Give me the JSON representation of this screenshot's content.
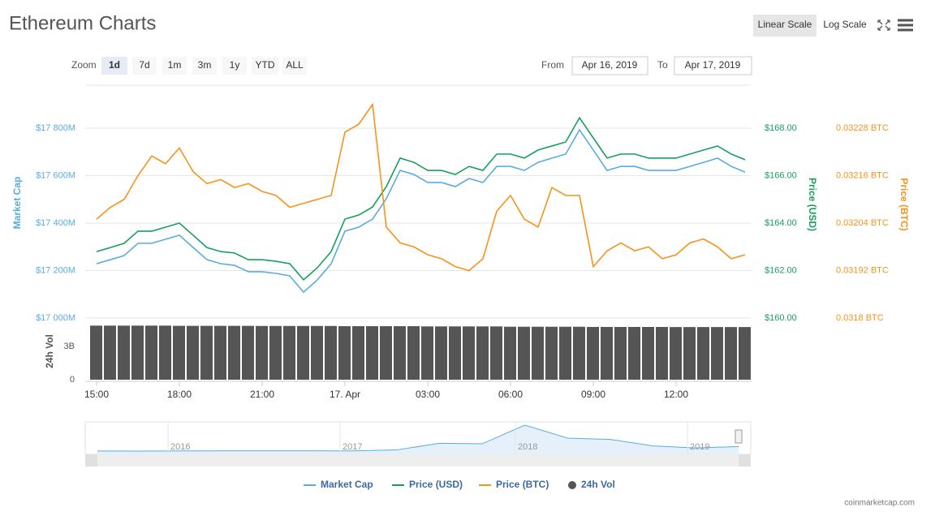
{
  "ui": {
    "scale_buttons": [
      "Linear Scale",
      "Log Scale"
    ],
    "zoom_label": "Zoom",
    "zoom_buttons": [
      "1d",
      "7d",
      "1m",
      "3m",
      "1y",
      "YTD",
      "ALL"
    ],
    "from_label": "From",
    "from_value": "Apr 16, 2019",
    "to_label": "To",
    "to_value": "Apr 17, 2019",
    "credit": "coinmarketcap.com"
  },
  "chart_data": {
    "type": "line",
    "title": "Ethereum Charts",
    "categories": [
      "15:00",
      null,
      null,
      null,
      null,
      null,
      "18:00",
      null,
      null,
      null,
      null,
      null,
      "21:00",
      null,
      null,
      null,
      null,
      null,
      "17. Apr",
      null,
      null,
      null,
      null,
      null,
      "03:00",
      null,
      null,
      null,
      null,
      null,
      "06:00",
      null,
      null,
      null,
      null,
      null,
      "09:00",
      null,
      null,
      null,
      null,
      null,
      "12:00",
      null,
      null,
      null,
      null,
      null
    ],
    "y_label": "Market Cap",
    "y2_label": "Price (USD)",
    "y3_label": "Price (BTC)",
    "y4_label": "24h Vol",
    "ylim": [
      17000,
      18000
    ],
    "yticks": [
      {
        "value": 17000,
        "label": "$17 000M"
      },
      {
        "value": 17200,
        "label": "$17 200M"
      },
      {
        "value": 17400,
        "label": "$17 400M"
      },
      {
        "value": 17600,
        "label": "$17 600M"
      },
      {
        "value": 17800,
        "label": "$17 800M"
      }
    ],
    "y2lim": [
      160,
      170
    ],
    "y2ticks": [
      {
        "value": 160,
        "label": "$160.00"
      },
      {
        "value": 162,
        "label": "$162.00"
      },
      {
        "value": 164,
        "label": "$164.00"
      },
      {
        "value": 166,
        "label": "$166.00"
      },
      {
        "value": 168,
        "label": "$168.00"
      }
    ],
    "y3lim": [
      0.0318,
      0.0324
    ],
    "y3ticks": [
      {
        "value": 0.0318,
        "label": "0.0318 BTC"
      },
      {
        "value": 0.03192,
        "label": "0.03192 BTC"
      },
      {
        "value": 0.03204,
        "label": "0.03204 BTC"
      },
      {
        "value": 0.03216,
        "label": "0.03216 BTC"
      },
      {
        "value": 0.03228,
        "label": "0.03228 BTC"
      }
    ],
    "y4lim": [
      0,
      5000000000
    ],
    "y4ticks": [
      0,
      {
        "value": 3000000000,
        "label": "3B"
      }
    ],
    "grid": true,
    "series": [
      {
        "name": "Market Cap",
        "color": "#5aacdf",
        "axis": "y",
        "values": [
          17229,
          17246,
          17263,
          17315,
          17315,
          17332,
          17349,
          17297,
          17246,
          17229,
          17222,
          17195,
          17195,
          17188,
          17178,
          17109,
          17161,
          17229,
          17366,
          17383,
          17417,
          17503,
          17622,
          17605,
          17571,
          17571,
          17554,
          17588,
          17571,
          17639,
          17639,
          17622,
          17656,
          17674,
          17691,
          17793,
          17708,
          17622,
          17639,
          17639,
          17622,
          17622,
          17622,
          17639,
          17656,
          17674,
          17639,
          17615
        ]
      },
      {
        "name": "Price (USD)",
        "color": "#16a05d",
        "axis": "y2",
        "values": [
          162.8,
          162.97,
          163.15,
          163.66,
          163.66,
          163.83,
          164.0,
          163.49,
          162.97,
          162.8,
          162.74,
          162.46,
          162.46,
          162.39,
          162.29,
          161.61,
          162.12,
          162.8,
          164.17,
          164.34,
          164.68,
          165.54,
          166.74,
          166.56,
          166.22,
          166.22,
          166.05,
          166.39,
          166.22,
          166.91,
          166.91,
          166.74,
          167.08,
          167.25,
          167.42,
          168.44,
          167.59,
          166.74,
          166.91,
          166.91,
          166.74,
          166.74,
          166.74,
          166.91,
          167.08,
          167.25,
          166.91,
          166.67
        ]
      },
      {
        "name": "Price (BTC)",
        "color": "#f7931a",
        "axis": "y3",
        "values": [
          0.03205,
          0.03208,
          0.0321,
          0.03216,
          0.03221,
          0.03219,
          0.03223,
          0.03217,
          0.03214,
          0.03215,
          0.03213,
          0.03214,
          0.03212,
          0.03211,
          0.03208,
          0.03209,
          0.0321,
          0.03211,
          0.03227,
          0.03229,
          0.03234,
          0.03203,
          0.03199,
          0.03198,
          0.03196,
          0.03195,
          0.03193,
          0.03192,
          0.03195,
          0.03207,
          0.03211,
          0.03205,
          0.03203,
          0.03213,
          0.03211,
          0.03211,
          0.03193,
          0.03197,
          0.03199,
          0.03197,
          0.03198,
          0.03195,
          0.03196,
          0.03199,
          0.032,
          0.03198,
          0.03195,
          0.03196
        ]
      },
      {
        "name": "24h Vol",
        "color": "#555555",
        "axis": "y4",
        "type": "bar",
        "values": [
          4900000000,
          4900000000,
          4900000000,
          4900000000,
          4900000000,
          4900000000,
          4880000000,
          4880000000,
          4880000000,
          4880000000,
          4880000000,
          4880000000,
          4870000000,
          4870000000,
          4870000000,
          4870000000,
          4870000000,
          4870000000,
          4850000000,
          4850000000,
          4850000000,
          4850000000,
          4850000000,
          4850000000,
          4830000000,
          4830000000,
          4830000000,
          4830000000,
          4830000000,
          4830000000,
          4800000000,
          4800000000,
          4800000000,
          4800000000,
          4800000000,
          4800000000,
          4780000000,
          4780000000,
          4780000000,
          4780000000,
          4780000000,
          4780000000,
          4770000000,
          4770000000,
          4770000000,
          4770000000,
          4770000000,
          4770000000
        ]
      }
    ],
    "navigator": {
      "labels": [
        "2016",
        "2017",
        "2018",
        "2019"
      ],
      "values": [
        300,
        100,
        900,
        1000,
        1000,
        1000,
        800,
        4500,
        30000,
        28000,
        100000,
        50000,
        45000,
        20000,
        12000,
        17600
      ]
    }
  }
}
